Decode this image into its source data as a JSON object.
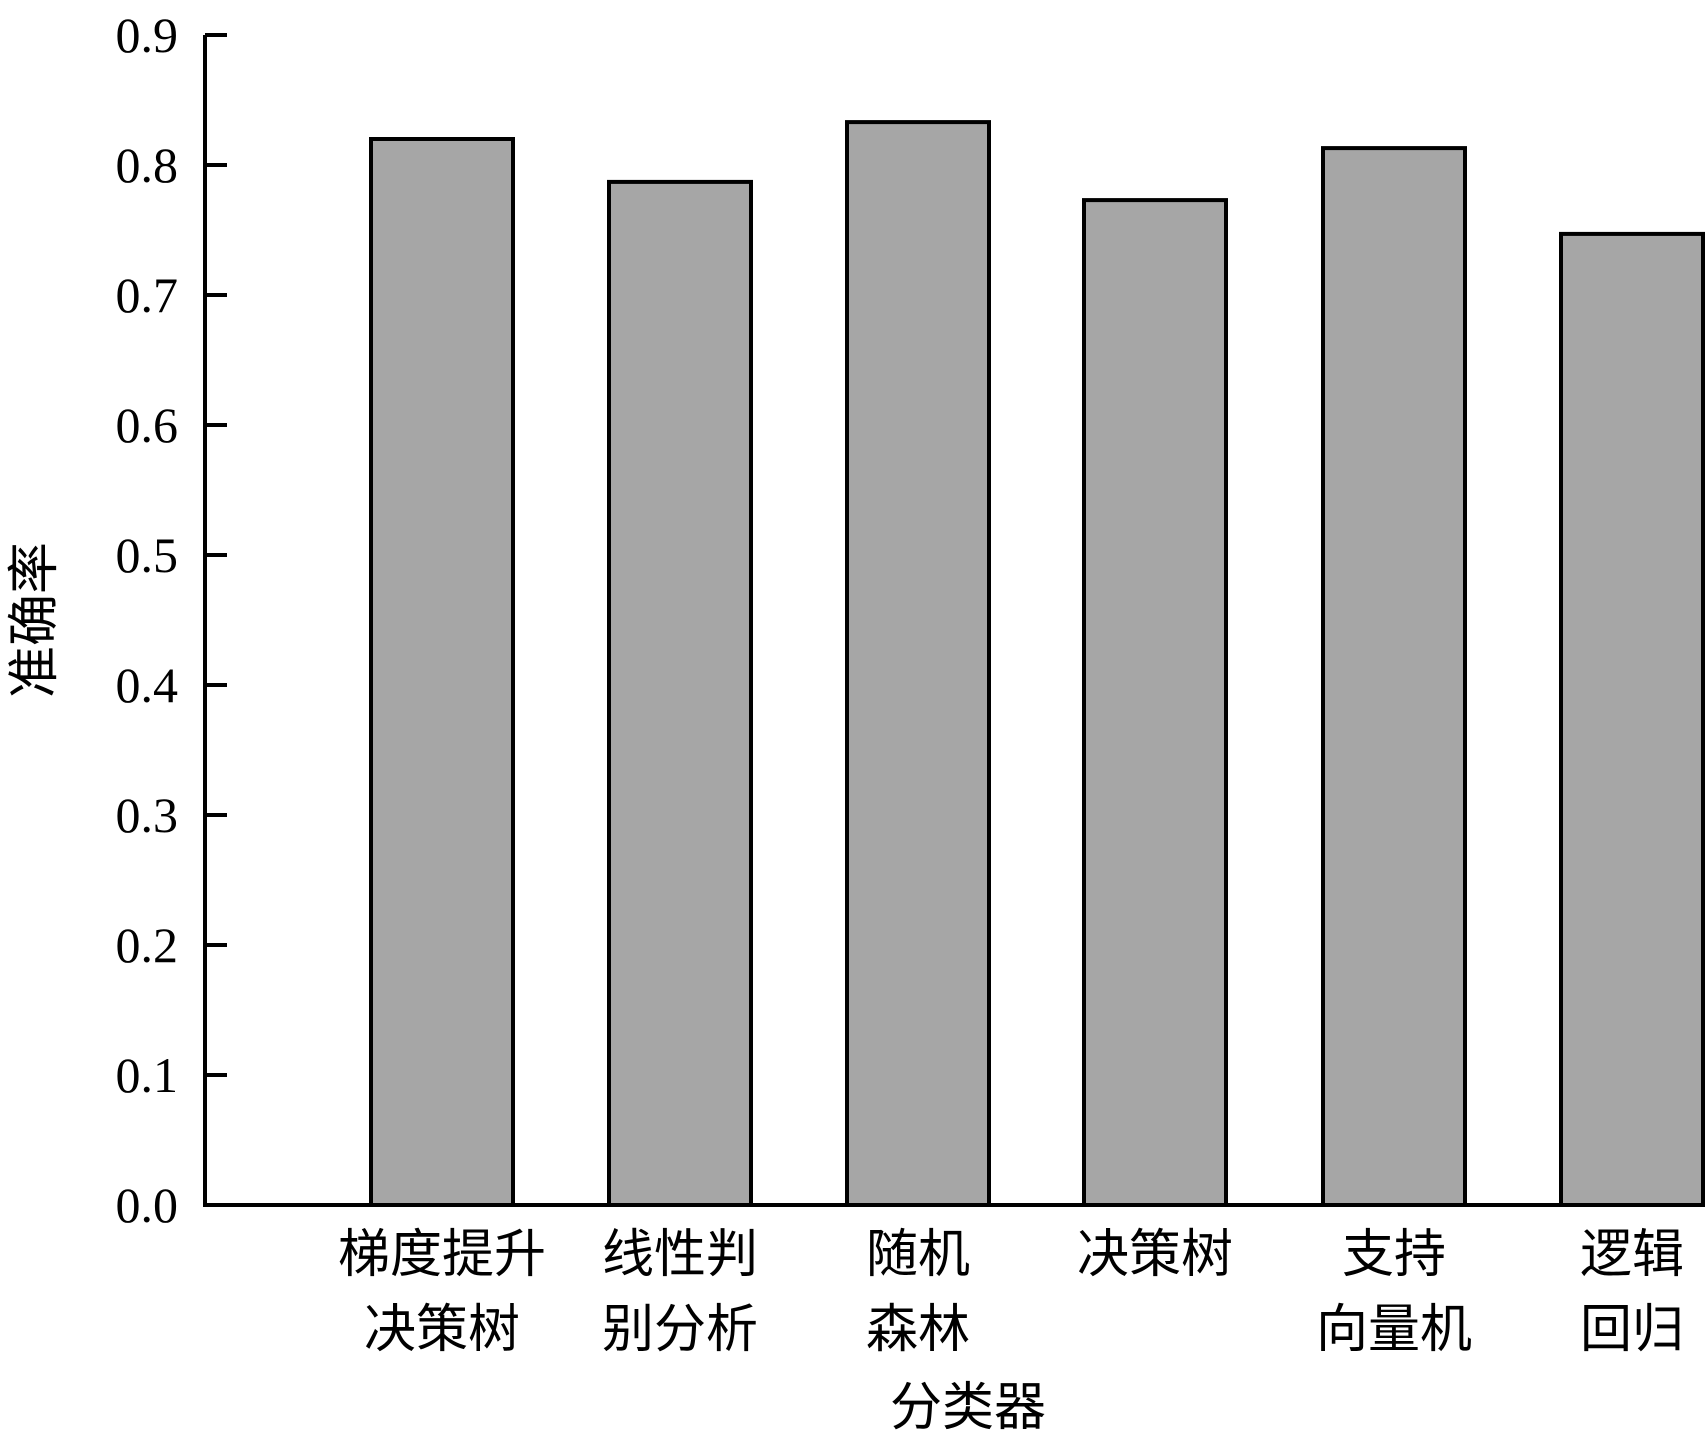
{
  "chart_data": {
    "type": "bar",
    "categories": [
      [
        "梯度提升",
        "决策树"
      ],
      [
        "线性判",
        "别分析"
      ],
      [
        "随机",
        "森林"
      ],
      [
        "决策树"
      ],
      [
        "支持",
        "向量机"
      ],
      [
        "逻辑",
        "回归"
      ]
    ],
    "values": [
      0.82,
      0.787,
      0.833,
      0.773,
      0.813,
      0.747
    ],
    "xlabel": "分类器",
    "ylabel": "准确率",
    "ylim": [
      0,
      0.9
    ],
    "yticks": [
      "0.0",
      "0.1",
      "0.2",
      "0.3",
      "0.4",
      "0.5",
      "0.6",
      "0.7",
      "0.8",
      "0.9"
    ],
    "bar_color": "#a6a6a6",
    "bar_edge_color": "#000000",
    "grid": false,
    "legend": "none"
  }
}
